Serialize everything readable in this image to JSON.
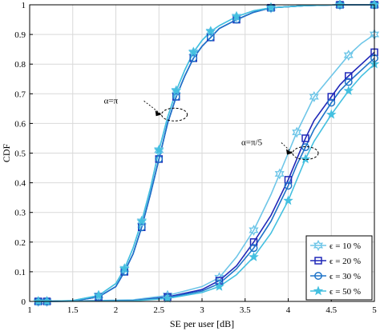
{
  "chart_data": {
    "type": "line",
    "xlabel": "SE per user [dB]",
    "ylabel": "CDF",
    "xlim": [
      1,
      5
    ],
    "ylim": [
      0,
      1
    ],
    "xticks": [
      1,
      1.5,
      2,
      2.5,
      3,
      3.5,
      4,
      4.5,
      5
    ],
    "xtick_labels": [
      "1",
      "1.5",
      "2",
      "2.5",
      "3",
      "3.5",
      "4",
      "4.5",
      "5"
    ],
    "yticks": [
      0,
      0.1,
      0.2,
      0.3,
      0.4,
      0.5,
      0.6,
      0.7,
      0.8,
      0.9,
      1
    ],
    "ytick_labels": [
      "0",
      "0.1",
      "0.2",
      "0.3",
      "0.4",
      "0.5",
      "0.6",
      "0.7",
      "0.8",
      "0.9",
      "1"
    ],
    "grid": true,
    "legend_position": "bottom-right",
    "series": [
      {
        "name": "ϵ = 10 %",
        "color": "#6ec6e8",
        "marker": "hexagram",
        "x": [
          1.1,
          1.5,
          1.8,
          2.0,
          2.1,
          2.2,
          2.3,
          2.4,
          2.5,
          2.6,
          2.7,
          2.8,
          2.9,
          3.0,
          3.1,
          3.2,
          3.4,
          3.6,
          3.8,
          4.2,
          4.6,
          5.0
        ],
        "y": [
          0,
          0.003,
          0.02,
          0.06,
          0.11,
          0.18,
          0.27,
          0.38,
          0.51,
          0.62,
          0.71,
          0.78,
          0.84,
          0.88,
          0.91,
          0.93,
          0.96,
          0.98,
          0.99,
          0.997,
          1.0,
          1.0
        ]
      },
      {
        "name": "ϵ = 20 %",
        "color": "#2028b8",
        "marker": "square",
        "x": [
          1.1,
          1.5,
          1.8,
          2.0,
          2.1,
          2.2,
          2.3,
          2.4,
          2.5,
          2.6,
          2.7,
          2.8,
          2.9,
          3.0,
          3.1,
          3.2,
          3.4,
          3.6,
          3.8,
          4.2,
          4.6,
          5.0
        ],
        "y": [
          0,
          0.002,
          0.015,
          0.05,
          0.1,
          0.16,
          0.25,
          0.36,
          0.48,
          0.6,
          0.69,
          0.76,
          0.82,
          0.86,
          0.89,
          0.92,
          0.95,
          0.975,
          0.99,
          0.997,
          1.0,
          1.0
        ]
      },
      {
        "name": "ϵ = 30 %",
        "color": "#1e73c8",
        "marker": "circle",
        "x": [
          1.1,
          1.5,
          1.8,
          2.0,
          2.1,
          2.2,
          2.3,
          2.4,
          2.5,
          2.6,
          2.7,
          2.8,
          2.9,
          3.0,
          3.1,
          3.2,
          3.4,
          3.6,
          3.8,
          4.2,
          4.6,
          5.0
        ],
        "y": [
          0,
          0.002,
          0.015,
          0.05,
          0.1,
          0.16,
          0.25,
          0.36,
          0.48,
          0.6,
          0.69,
          0.76,
          0.82,
          0.86,
          0.89,
          0.92,
          0.95,
          0.975,
          0.99,
          0.997,
          1.0,
          1.0
        ]
      },
      {
        "name": "ϵ = 50 %",
        "color": "#44c0e0",
        "marker": "star",
        "x": [
          1.1,
          1.5,
          1.8,
          2.0,
          2.1,
          2.2,
          2.3,
          2.4,
          2.5,
          2.6,
          2.7,
          2.8,
          2.9,
          3.0,
          3.1,
          3.2,
          3.4,
          3.6,
          3.8,
          4.2,
          4.6,
          5.0
        ],
        "y": [
          0,
          0.003,
          0.02,
          0.06,
          0.11,
          0.18,
          0.27,
          0.38,
          0.51,
          0.62,
          0.71,
          0.78,
          0.84,
          0.88,
          0.91,
          0.93,
          0.96,
          0.98,
          0.99,
          0.997,
          1.0,
          1.0
        ]
      },
      {
        "name": "ϵ = 10 %",
        "color": "#6ec6e8",
        "marker": "hexagram",
        "x": [
          1.2,
          2.2,
          2.6,
          3.0,
          3.2,
          3.4,
          3.6,
          3.8,
          3.9,
          4.0,
          4.1,
          4.2,
          4.3,
          4.5,
          4.7,
          4.85,
          5.0
        ],
        "y": [
          0,
          0.005,
          0.02,
          0.05,
          0.08,
          0.15,
          0.24,
          0.36,
          0.43,
          0.5,
          0.57,
          0.63,
          0.69,
          0.76,
          0.83,
          0.87,
          0.9
        ]
      },
      {
        "name": "ϵ = 20 %",
        "color": "#2028b8",
        "marker": "square",
        "x": [
          1.2,
          2.2,
          2.6,
          3.0,
          3.2,
          3.4,
          3.6,
          3.8,
          4.0,
          4.1,
          4.2,
          4.3,
          4.5,
          4.6,
          4.7,
          4.85,
          5.0
        ],
        "y": [
          0,
          0.003,
          0.015,
          0.04,
          0.07,
          0.12,
          0.2,
          0.29,
          0.41,
          0.48,
          0.55,
          0.61,
          0.69,
          0.73,
          0.76,
          0.8,
          0.84
        ]
      },
      {
        "name": "ϵ = 30 %",
        "color": "#1e73c8",
        "marker": "circle",
        "x": [
          1.2,
          2.2,
          2.6,
          3.0,
          3.2,
          3.4,
          3.6,
          3.8,
          4.0,
          4.1,
          4.2,
          4.3,
          4.5,
          4.6,
          4.7,
          4.85,
          5.0
        ],
        "y": [
          0,
          0.003,
          0.013,
          0.035,
          0.06,
          0.11,
          0.18,
          0.27,
          0.39,
          0.46,
          0.52,
          0.58,
          0.67,
          0.71,
          0.74,
          0.78,
          0.82
        ]
      },
      {
        "name": "ϵ = 50 %",
        "color": "#44c0e0",
        "marker": "star",
        "x": [
          1.2,
          2.2,
          2.6,
          3.0,
          3.2,
          3.4,
          3.6,
          3.8,
          4.0,
          4.1,
          4.2,
          4.3,
          4.5,
          4.6,
          4.7,
          4.85,
          5.0
        ],
        "y": [
          0,
          0.002,
          0.01,
          0.03,
          0.05,
          0.09,
          0.15,
          0.23,
          0.34,
          0.41,
          0.48,
          0.54,
          0.63,
          0.67,
          0.71,
          0.76,
          0.8
        ]
      }
    ],
    "annotations": [
      {
        "text": "α=π",
        "target_x": 2.68,
        "target_y": 0.63
      },
      {
        "text": "α=π/5",
        "target_x": 4.2,
        "target_y": 0.5
      }
    ],
    "legend": [
      "ϵ = 10 %",
      "ϵ = 20 %",
      "ϵ = 30 %",
      "ϵ = 50 %"
    ]
  }
}
